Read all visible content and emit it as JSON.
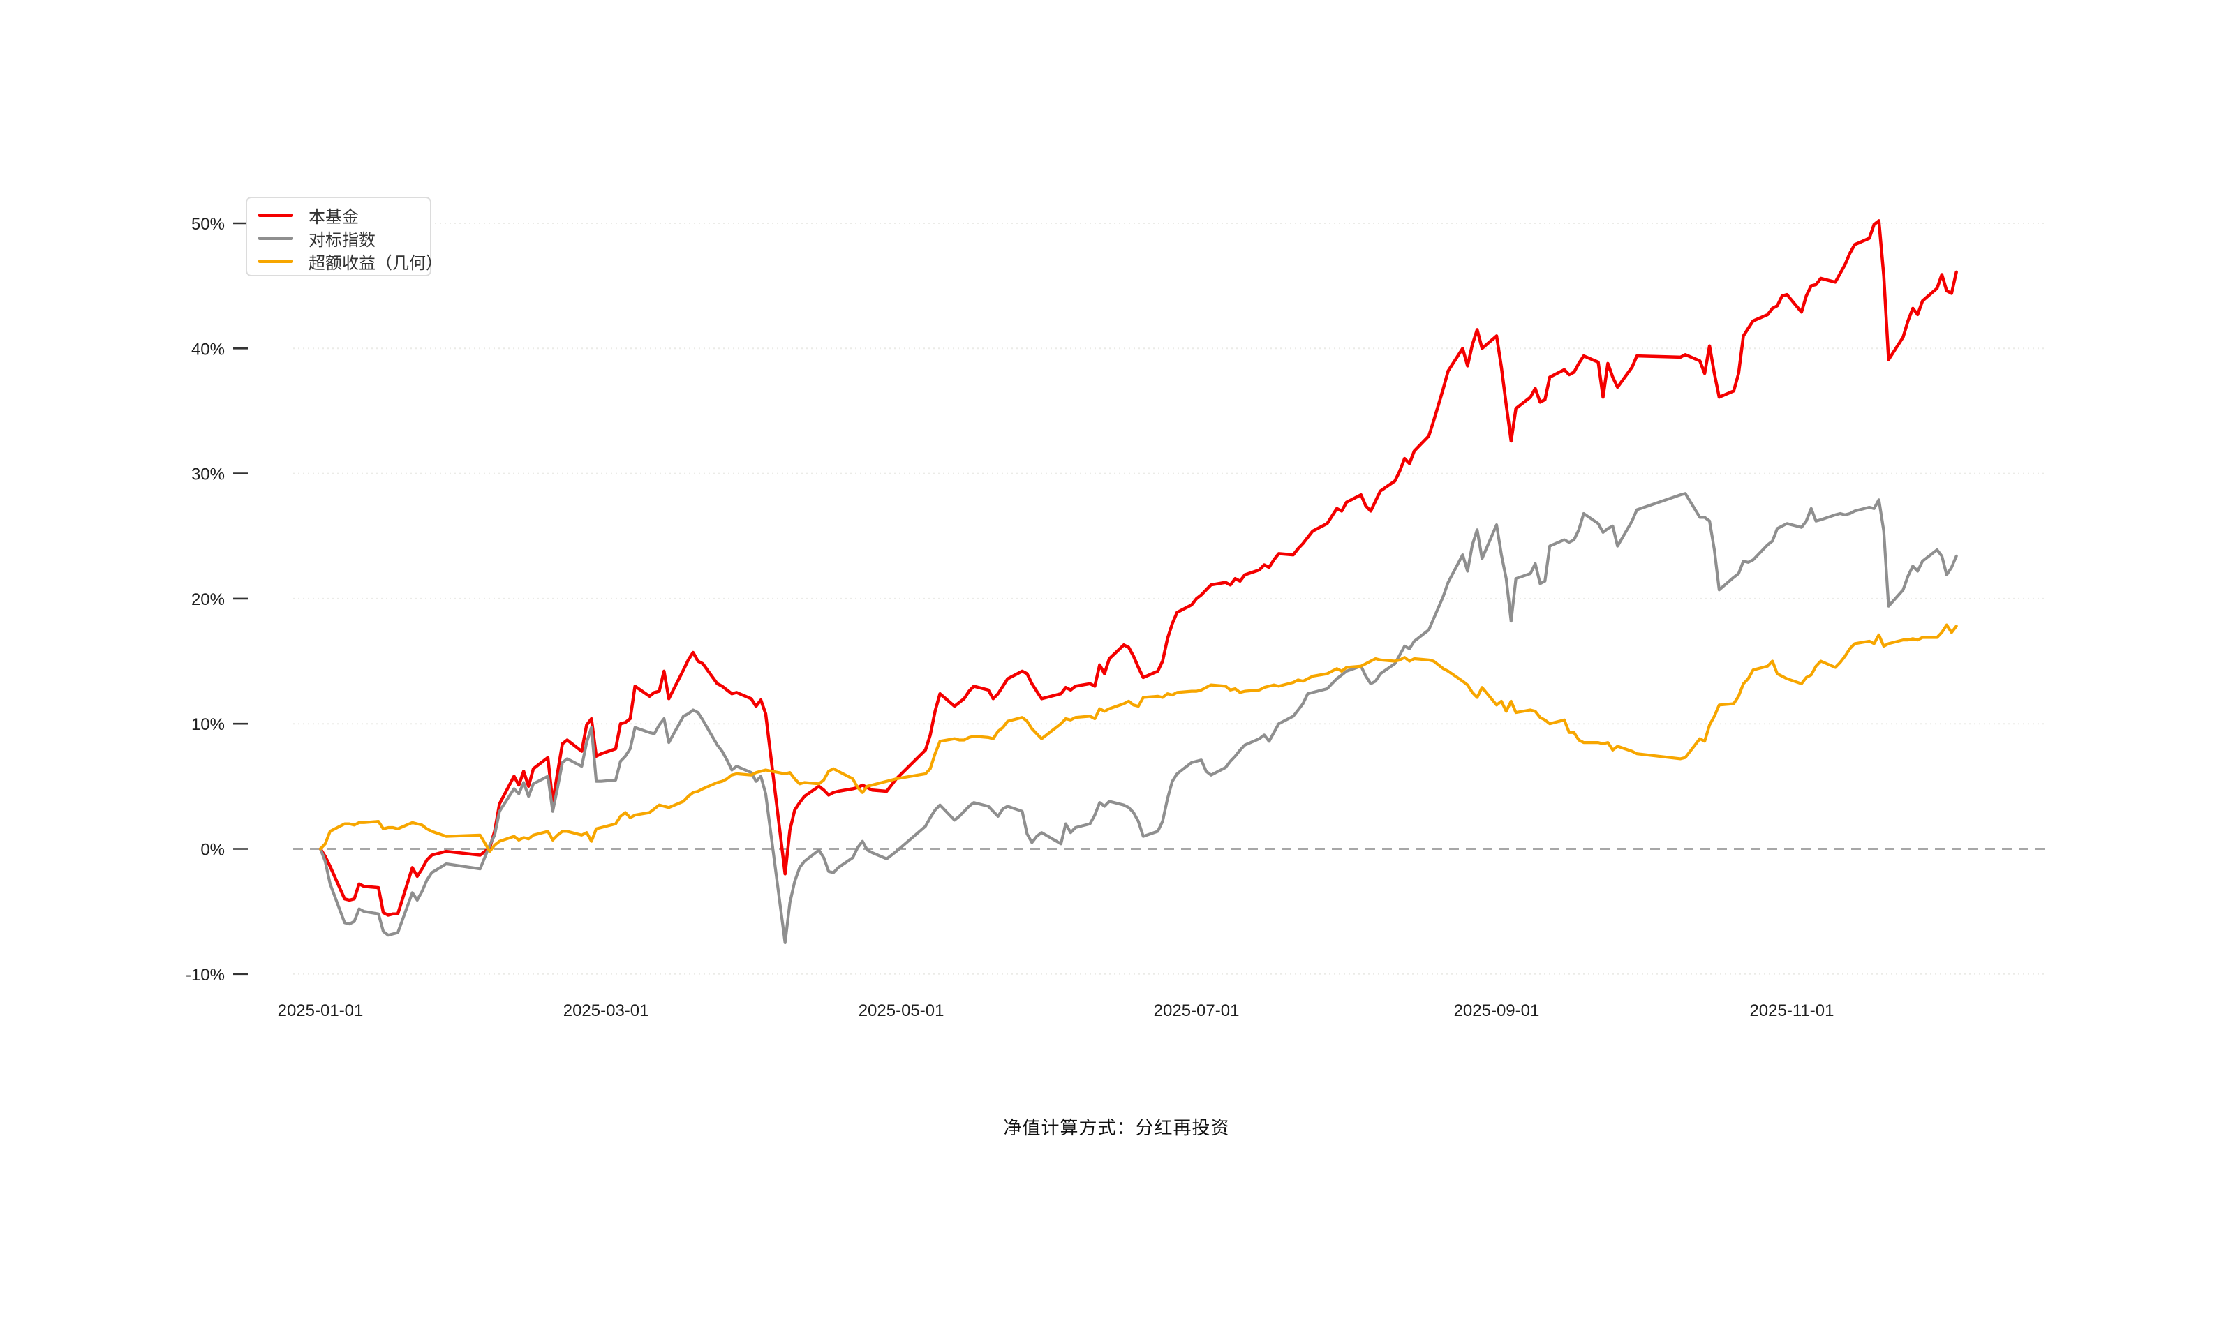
{
  "page": {
    "background": "#ffffff"
  },
  "footer": {
    "nav_method_note": "净值计算方式：分红再投资"
  },
  "chart_data": {
    "type": "line",
    "title": "",
    "legend_position": "top-left",
    "grid": "horizontal-dotted",
    "zero_line": {
      "style": "dashed",
      "color": "#8a8a8a"
    },
    "y_axis": {
      "unit": "%",
      "range": [
        -10,
        50
      ],
      "tick_values": [
        50,
        40,
        30,
        20,
        10,
        0,
        -10
      ],
      "tick_labels": [
        "50%",
        "40%",
        "30%",
        "20%",
        "10%",
        "0%",
        "-10%"
      ]
    },
    "x_axis": {
      "range": [
        "2025-01-01",
        "2025-12-05"
      ],
      "tick_labels": [
        "2025-01-01",
        "2025-03-01",
        "2025-05-01",
        "2025-07-01",
        "2025-09-01",
        "2025-11-01"
      ]
    },
    "dates": [
      "2025-01-01",
      "2025-01-02",
      "2025-01-03",
      "2025-01-06",
      "2025-01-07",
      "2025-01-08",
      "2025-01-09",
      "2025-01-10",
      "2025-01-13",
      "2025-01-14",
      "2025-01-15",
      "2025-01-16",
      "2025-01-17",
      "2025-01-20",
      "2025-01-21",
      "2025-01-22",
      "2025-01-23",
      "2025-01-24",
      "2025-01-27",
      "2025-02-03",
      "2025-02-05",
      "2025-02-06",
      "2025-02-07",
      "2025-02-10",
      "2025-02-11",
      "2025-02-12",
      "2025-02-13",
      "2025-02-14",
      "2025-02-17",
      "2025-02-18",
      "2025-02-19",
      "2025-02-20",
      "2025-02-21",
      "2025-02-24",
      "2025-02-25",
      "2025-02-26",
      "2025-02-27",
      "2025-02-28",
      "2025-03-03",
      "2025-03-04",
      "2025-03-05",
      "2025-03-06",
      "2025-03-07",
      "2025-03-10",
      "2025-03-11",
      "2025-03-12",
      "2025-03-13",
      "2025-03-14",
      "2025-03-17",
      "2025-03-18",
      "2025-03-19",
      "2025-03-20",
      "2025-03-21",
      "2025-03-24",
      "2025-03-25",
      "2025-03-26",
      "2025-03-27",
      "2025-03-28",
      "2025-03-31",
      "2025-04-01",
      "2025-04-02",
      "2025-04-03",
      "2025-04-07",
      "2025-04-08",
      "2025-04-09",
      "2025-04-10",
      "2025-04-11",
      "2025-04-14",
      "2025-04-15",
      "2025-04-16",
      "2025-04-17",
      "2025-04-18",
      "2025-04-21",
      "2025-04-22",
      "2025-04-23",
      "2025-04-24",
      "2025-04-25",
      "2025-04-28",
      "2025-04-30",
      "2025-05-06",
      "2025-05-07",
      "2025-05-08",
      "2025-05-09",
      "2025-05-12",
      "2025-05-13",
      "2025-05-14",
      "2025-05-15",
      "2025-05-16",
      "2025-05-19",
      "2025-05-20",
      "2025-05-21",
      "2025-05-22",
      "2025-05-23",
      "2025-05-26",
      "2025-05-27",
      "2025-05-28",
      "2025-05-29",
      "2025-05-30",
      "2025-06-03",
      "2025-06-04",
      "2025-06-05",
      "2025-06-06",
      "2025-06-09",
      "2025-06-10",
      "2025-06-11",
      "2025-06-12",
      "2025-06-13",
      "2025-06-16",
      "2025-06-17",
      "2025-06-18",
      "2025-06-19",
      "2025-06-20",
      "2025-06-23",
      "2025-06-24",
      "2025-06-25",
      "2025-06-26",
      "2025-06-27",
      "2025-06-30",
      "2025-07-01",
      "2025-07-02",
      "2025-07-03",
      "2025-07-04",
      "2025-07-07",
      "2025-07-08",
      "2025-07-09",
      "2025-07-10",
      "2025-07-11",
      "2025-07-14",
      "2025-07-15",
      "2025-07-16",
      "2025-07-17",
      "2025-07-18",
      "2025-07-21",
      "2025-07-22",
      "2025-07-23",
      "2025-07-24",
      "2025-07-25",
      "2025-07-28",
      "2025-07-29",
      "2025-07-30",
      "2025-07-31",
      "2025-08-01",
      "2025-08-04",
      "2025-08-05",
      "2025-08-06",
      "2025-08-07",
      "2025-08-08",
      "2025-08-11",
      "2025-08-12",
      "2025-08-13",
      "2025-08-14",
      "2025-08-15",
      "2025-08-18",
      "2025-08-19",
      "2025-08-20",
      "2025-08-21",
      "2025-08-22",
      "2025-08-25",
      "2025-08-26",
      "2025-08-27",
      "2025-08-28",
      "2025-08-29",
      "2025-09-01",
      "2025-09-02",
      "2025-09-03",
      "2025-09-04",
      "2025-09-05",
      "2025-09-08",
      "2025-09-09",
      "2025-09-10",
      "2025-09-11",
      "2025-09-12",
      "2025-09-15",
      "2025-09-16",
      "2025-09-17",
      "2025-09-18",
      "2025-09-19",
      "2025-09-22",
      "2025-09-23",
      "2025-09-24",
      "2025-09-25",
      "2025-09-26",
      "2025-09-29",
      "2025-09-30",
      "2025-10-09",
      "2025-10-10",
      "2025-10-13",
      "2025-10-14",
      "2025-10-15",
      "2025-10-16",
      "2025-10-17",
      "2025-10-20",
      "2025-10-21",
      "2025-10-22",
      "2025-10-23",
      "2025-10-24",
      "2025-10-27",
      "2025-10-28",
      "2025-10-29",
      "2025-10-30",
      "2025-10-31",
      "2025-11-03",
      "2025-11-04",
      "2025-11-05",
      "2025-11-06",
      "2025-11-07",
      "2025-11-10",
      "2025-11-11",
      "2025-11-12",
      "2025-11-13",
      "2025-11-14",
      "2025-11-17",
      "2025-11-18",
      "2025-11-19",
      "2025-11-20",
      "2025-11-21",
      "2025-11-24",
      "2025-11-25",
      "2025-11-26",
      "2025-11-27",
      "2025-11-28",
      "2025-12-01",
      "2025-12-02",
      "2025-12-03",
      "2025-12-04",
      "2025-12-05"
    ],
    "series": [
      {
        "name": "本基金",
        "color": "#f40000",
        "width": 4.5,
        "values": [
          0,
          -0.6,
          -1.4,
          -4.0,
          -4.1,
          -4.0,
          -2.8,
          -3.0,
          -3.1,
          -5.1,
          -5.3,
          -5.2,
          -5.2,
          -1.5,
          -2.2,
          -1.6,
          -0.9,
          -0.5,
          -0.2,
          -0.5,
          0.1,
          1.4,
          3.6,
          5.8,
          5.1,
          6.2,
          5.0,
          6.4,
          7.3,
          3.7,
          6.1,
          8.4,
          8.7,
          7.8,
          9.9,
          10.4,
          7.4,
          7.6,
          8.0,
          10.0,
          10.1,
          10.4,
          13.0,
          12.2,
          12.5,
          12.6,
          14.2,
          12.0,
          14.3,
          15.1,
          15.7,
          15.0,
          14.8,
          13.2,
          13.0,
          12.7,
          12.4,
          12.5,
          12.0,
          11.4,
          11.9,
          10.8,
          -2.0,
          1.5,
          3.1,
          3.7,
          4.2,
          5.0,
          4.7,
          4.3,
          4.5,
          4.6,
          4.8,
          4.9,
          5.1,
          4.9,
          4.7,
          4.6,
          5.6,
          7.9,
          9.1,
          11.0,
          12.4,
          11.4,
          11.7,
          12.0,
          12.6,
          13.0,
          12.7,
          12.0,
          12.4,
          13.0,
          13.6,
          14.2,
          14.0,
          13.2,
          12.6,
          12.0,
          12.4,
          12.9,
          12.7,
          13.0,
          13.2,
          13.0,
          14.7,
          14.0,
          15.2,
          16.3,
          16.1,
          15.4,
          14.5,
          13.7,
          14.2,
          15.0,
          16.8,
          18.0,
          18.9,
          19.5,
          20.0,
          20.3,
          20.7,
          21.1,
          21.3,
          21.1,
          21.6,
          21.4,
          21.9,
          22.3,
          22.7,
          22.5,
          23.1,
          23.6,
          23.5,
          24.0,
          24.4,
          24.9,
          25.4,
          26.0,
          26.6,
          27.2,
          27.0,
          27.7,
          28.3,
          27.4,
          27.0,
          27.8,
          28.6,
          29.4,
          30.2,
          31.2,
          30.8,
          31.8,
          33.0,
          34.2,
          35.5,
          36.8,
          38.2,
          40.0,
          38.6,
          40.3,
          41.5,
          40.0,
          41.0,
          38.5,
          35.5,
          32.6,
          35.2,
          36.1,
          36.8,
          35.7,
          35.9,
          37.7,
          38.3,
          37.9,
          38.1,
          38.8,
          39.4,
          38.9,
          36.1,
          38.8,
          37.7,
          36.9,
          38.5,
          39.4,
          39.3,
          39.5,
          39.0,
          38.0,
          40.2,
          38.0,
          36.1,
          36.6,
          38.0,
          41.0,
          41.6,
          42.2,
          42.7,
          43.2,
          43.4,
          44.2,
          44.3,
          42.9,
          44.2,
          45.0,
          45.1,
          45.6,
          45.3,
          46.0,
          46.7,
          47.6,
          48.3,
          48.8,
          49.9,
          50.2,
          45.8,
          39.1,
          40.9,
          42.2,
          43.2,
          42.7,
          43.8,
          44.8,
          45.9,
          44.6,
          44.4,
          46.1
        ]
      },
      {
        "name": "对标指数",
        "color": "#8f8f8f",
        "width": 4.2,
        "values": [
          0,
          -1.0,
          -2.8,
          -5.9,
          -6.0,
          -5.8,
          -4.8,
          -5.0,
          -5.2,
          -6.6,
          -6.9,
          -6.8,
          -6.7,
          -3.5,
          -4.1,
          -3.4,
          -2.5,
          -1.9,
          -1.2,
          -1.6,
          0.3,
          1.1,
          3.0,
          4.8,
          4.4,
          5.3,
          4.2,
          5.2,
          5.8,
          3.0,
          4.9,
          6.9,
          7.2,
          6.6,
          8.5,
          9.7,
          5.4,
          5.4,
          5.5,
          7.0,
          7.4,
          8.0,
          9.7,
          9.3,
          9.2,
          9.9,
          10.4,
          8.5,
          10.6,
          10.8,
          11.1,
          10.9,
          10.3,
          8.3,
          7.8,
          7.1,
          6.3,
          6.6,
          6.1,
          5.4,
          5.8,
          4.4,
          -7.5,
          -4.3,
          -2.6,
          -1.5,
          -1.0,
          -0.1,
          -0.7,
          -1.8,
          -1.9,
          -1.5,
          -0.7,
          0.1,
          0.6,
          -0.1,
          -0.3,
          -0.8,
          -0.2,
          1.8,
          2.5,
          3.1,
          3.5,
          2.3,
          2.6,
          3.0,
          3.4,
          3.7,
          3.4,
          3.0,
          2.6,
          3.2,
          3.4,
          3.0,
          1.2,
          0.5,
          1.0,
          1.3,
          0.4,
          2.0,
          1.3,
          1.7,
          2.0,
          2.7,
          3.7,
          3.4,
          3.8,
          3.5,
          3.3,
          2.9,
          2.2,
          1.0,
          1.4,
          2.2,
          4.0,
          5.4,
          6.0,
          6.9,
          7.0,
          7.1,
          6.2,
          5.9,
          6.5,
          7.0,
          7.4,
          7.9,
          8.3,
          8.8,
          9.1,
          8.6,
          9.3,
          10.0,
          10.6,
          11.1,
          11.6,
          12.4,
          12.5,
          12.8,
          13.2,
          13.6,
          13.9,
          14.2,
          14.6,
          13.8,
          13.2,
          13.4,
          14.0,
          14.8,
          15.5,
          16.2,
          16.0,
          16.6,
          17.5,
          18.4,
          19.3,
          20.2,
          21.3,
          23.5,
          22.2,
          24.3,
          25.5,
          23.2,
          25.9,
          23.5,
          21.6,
          18.2,
          21.6,
          22.0,
          22.8,
          21.2,
          21.4,
          24.2,
          24.7,
          24.5,
          24.7,
          25.5,
          26.8,
          26.0,
          25.3,
          25.6,
          25.8,
          24.2,
          26.2,
          27.1,
          28.3,
          28.4,
          26.5,
          26.5,
          26.2,
          23.9,
          20.7,
          21.7,
          22.0,
          23.0,
          22.9,
          23.1,
          24.3,
          24.6,
          25.6,
          25.8,
          26.0,
          25.7,
          26.2,
          27.2,
          26.2,
          26.3,
          26.7,
          26.8,
          26.7,
          26.8,
          27.0,
          27.3,
          27.2,
          27.9,
          25.4,
          19.4,
          20.7,
          21.8,
          22.6,
          22.2,
          23.0,
          23.9,
          23.4,
          21.9,
          22.5,
          23.4
        ]
      },
      {
        "name": "超额收益（几何）",
        "color": "#f7a600",
        "width": 4.2,
        "values": [
          0,
          0.4,
          1.4,
          2.0,
          2.0,
          1.9,
          2.1,
          2.1,
          2.2,
          1.6,
          1.7,
          1.7,
          1.6,
          2.1,
          2.0,
          1.9,
          1.6,
          1.4,
          1.0,
          1.1,
          -0.2,
          0.3,
          0.6,
          1.0,
          0.7,
          0.9,
          0.8,
          1.1,
          1.4,
          0.7,
          1.1,
          1.4,
          1.4,
          1.1,
          1.3,
          0.6,
          1.6,
          1.7,
          2.0,
          2.6,
          2.9,
          2.5,
          2.7,
          2.9,
          3.2,
          3.5,
          3.4,
          3.3,
          3.8,
          4.2,
          4.5,
          4.6,
          4.8,
          5.3,
          5.4,
          5.6,
          5.9,
          6.0,
          5.9,
          6.1,
          6.2,
          6.3,
          6.0,
          6.1,
          5.6,
          5.2,
          5.3,
          5.2,
          5.5,
          6.2,
          6.4,
          6.2,
          5.6,
          4.9,
          4.5,
          5.0,
          5.1,
          5.4,
          5.6,
          6.0,
          6.4,
          7.6,
          8.6,
          8.8,
          8.7,
          8.7,
          8.9,
          9.0,
          8.9,
          8.8,
          9.4,
          9.7,
          10.2,
          10.5,
          10.2,
          9.6,
          9.2,
          8.8,
          10.0,
          10.4,
          10.3,
          10.5,
          10.6,
          10.4,
          11.2,
          11.0,
          11.2,
          11.6,
          11.8,
          11.5,
          11.4,
          12.1,
          12.2,
          12.1,
          12.4,
          12.3,
          12.5,
          12.6,
          12.6,
          12.7,
          12.9,
          13.1,
          13.0,
          12.7,
          12.8,
          12.5,
          12.6,
          12.7,
          12.9,
          13.0,
          13.1,
          13.0,
          13.3,
          13.5,
          13.4,
          13.6,
          13.8,
          14.0,
          14.2,
          14.4,
          14.2,
          14.5,
          14.6,
          14.8,
          15.0,
          15.2,
          15.1,
          15.0,
          15.1,
          15.3,
          15.0,
          15.2,
          15.1,
          15.0,
          14.7,
          14.4,
          14.2,
          13.4,
          13.1,
          12.5,
          12.1,
          12.9,
          11.5,
          11.8,
          11.0,
          11.8,
          10.9,
          11.1,
          11.0,
          10.5,
          10.3,
          10.0,
          10.3,
          9.3,
          9.3,
          8.7,
          8.5,
          8.5,
          8.4,
          8.5,
          7.9,
          8.2,
          7.8,
          7.6,
          7.2,
          7.3,
          8.8,
          8.6,
          9.9,
          10.6,
          11.5,
          11.6,
          12.2,
          13.2,
          13.6,
          14.3,
          14.6,
          15.0,
          14.0,
          13.8,
          13.6,
          13.2,
          13.7,
          13.9,
          14.6,
          15.0,
          14.5,
          14.9,
          15.4,
          16.0,
          16.4,
          16.6,
          16.4,
          17.1,
          16.2,
          16.4,
          16.7,
          16.7,
          16.8,
          16.7,
          16.9,
          16.9,
          17.3,
          17.9,
          17.3,
          17.8
        ]
      }
    ]
  }
}
